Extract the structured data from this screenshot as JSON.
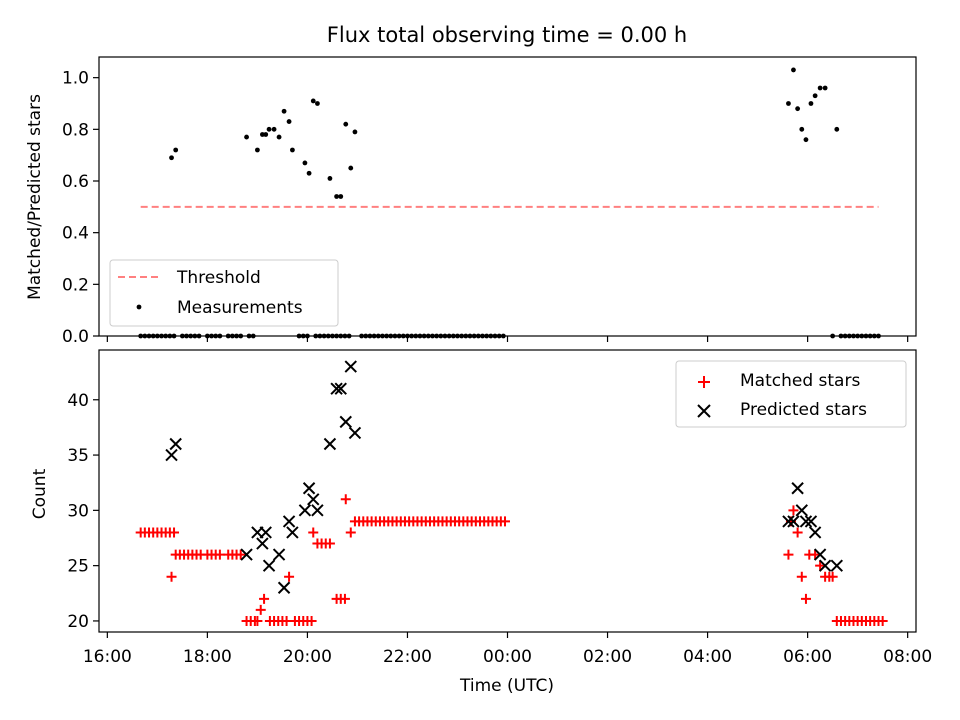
{
  "chart_data": [
    {
      "type": "scatter",
      "title": "Flux total observing time = 0.00 h",
      "ylabel": "Matched/Predicted stars",
      "xlabel": "",
      "ylim": [
        0.0,
        1.08
      ],
      "yticks": [
        "0.0",
        "0.2",
        "0.4",
        "0.6",
        "0.8",
        "1.0"
      ],
      "grid": false,
      "legend_position": "lower-left",
      "threshold": {
        "name": "Threshold",
        "y": 0.5,
        "x_start": "16:40",
        "x_end": "07:25",
        "color": "#ff8080"
      },
      "series": [
        {
          "name": "Measurements",
          "color": "#000000",
          "points": [
            [
              "16:40",
              0
            ],
            [
              "16:45",
              0
            ],
            [
              "16:50",
              0
            ],
            [
              "16:55",
              0
            ],
            [
              "17:00",
              0
            ],
            [
              "17:05",
              0
            ],
            [
              "17:10",
              0
            ],
            [
              "17:15",
              0
            ],
            [
              "17:20",
              0
            ],
            [
              "17:17",
              0.69
            ],
            [
              "17:22",
              0.72
            ],
            [
              "17:30",
              0
            ],
            [
              "17:35",
              0
            ],
            [
              "17:40",
              0
            ],
            [
              "17:45",
              0
            ],
            [
              "17:50",
              0
            ],
            [
              "18:00",
              0
            ],
            [
              "18:05",
              0
            ],
            [
              "18:10",
              0
            ],
            [
              "18:15",
              0
            ],
            [
              "18:25",
              0
            ],
            [
              "18:30",
              0
            ],
            [
              "18:35",
              0
            ],
            [
              "18:40",
              0
            ],
            [
              "18:50",
              0
            ],
            [
              "18:55",
              0
            ],
            [
              "18:47",
              0.77
            ],
            [
              "19:00",
              0.72
            ],
            [
              "19:06",
              0.78
            ],
            [
              "19:10",
              0.78
            ],
            [
              "19:14",
              0.8
            ],
            [
              "19:20",
              0.8
            ],
            [
              "19:26",
              0.77
            ],
            [
              "19:32",
              0.87
            ],
            [
              "19:38",
              0.83
            ],
            [
              "19:42",
              0.72
            ],
            [
              "19:57",
              0.67
            ],
            [
              "20:02",
              0.63
            ],
            [
              "20:07",
              0.91
            ],
            [
              "20:12",
              0.9
            ],
            [
              "20:27",
              0.61
            ],
            [
              "20:35",
              0.54
            ],
            [
              "20:40",
              0.54
            ],
            [
              "20:46",
              0.82
            ],
            [
              "20:52",
              0.65
            ],
            [
              "20:57",
              0.79
            ],
            [
              "19:50",
              0
            ],
            [
              "19:55",
              0
            ],
            [
              "20:00",
              0
            ],
            [
              "20:10",
              0
            ],
            [
              "20:15",
              0
            ],
            [
              "20:20",
              0
            ],
            [
              "20:25",
              0
            ],
            [
              "20:30",
              0
            ],
            [
              "20:35",
              0
            ],
            [
              "20:40",
              0
            ],
            [
              "20:45",
              0
            ],
            [
              "20:50",
              0
            ],
            [
              "21:05",
              0
            ],
            [
              "21:10",
              0
            ],
            [
              "21:15",
              0
            ],
            [
              "21:20",
              0
            ],
            [
              "21:25",
              0
            ],
            [
              "21:30",
              0
            ],
            [
              "21:35",
              0
            ],
            [
              "21:40",
              0
            ],
            [
              "21:45",
              0
            ],
            [
              "21:50",
              0
            ],
            [
              "21:55",
              0
            ],
            [
              "22:00",
              0
            ],
            [
              "22:05",
              0
            ],
            [
              "22:10",
              0
            ],
            [
              "22:15",
              0
            ],
            [
              "22:20",
              0
            ],
            [
              "22:25",
              0
            ],
            [
              "22:30",
              0
            ],
            [
              "22:35",
              0
            ],
            [
              "22:40",
              0
            ],
            [
              "22:45",
              0
            ],
            [
              "22:50",
              0
            ],
            [
              "22:55",
              0
            ],
            [
              "23:00",
              0
            ],
            [
              "23:05",
              0
            ],
            [
              "23:10",
              0
            ],
            [
              "23:15",
              0
            ],
            [
              "23:20",
              0
            ],
            [
              "23:25",
              0
            ],
            [
              "23:30",
              0
            ],
            [
              "23:35",
              0
            ],
            [
              "23:40",
              0
            ],
            [
              "23:45",
              0
            ],
            [
              "23:50",
              0
            ],
            [
              "23:55",
              0
            ],
            [
              "05:37",
              0.9
            ],
            [
              "05:43",
              1.03
            ],
            [
              "05:48",
              0.88
            ],
            [
              "05:53",
              0.8
            ],
            [
              "05:58",
              0.76
            ],
            [
              "06:04",
              0.9
            ],
            [
              "06:09",
              0.93
            ],
            [
              "06:15",
              0.96
            ],
            [
              "06:21",
              0.96
            ],
            [
              "06:35",
              0.8
            ],
            [
              "06:30",
              0
            ],
            [
              "06:40",
              0
            ],
            [
              "06:45",
              0
            ],
            [
              "06:50",
              0
            ],
            [
              "06:55",
              0
            ],
            [
              "07:00",
              0
            ],
            [
              "07:05",
              0
            ],
            [
              "07:10",
              0
            ],
            [
              "07:15",
              0
            ],
            [
              "07:20",
              0
            ],
            [
              "07:25",
              0
            ]
          ]
        }
      ]
    },
    {
      "type": "scatter",
      "ylabel": "Count",
      "xlabel": "Time (UTC)",
      "ylim": [
        19,
        44.5
      ],
      "yticks": [
        "20",
        "25",
        "30",
        "35",
        "40"
      ],
      "xlim": [
        "15:50",
        "08:10"
      ],
      "xticks": [
        "16:00",
        "18:00",
        "20:00",
        "22:00",
        "00:00",
        "02:00",
        "04:00",
        "06:00",
        "08:00"
      ],
      "grid": false,
      "legend_position": "upper-right",
      "series": [
        {
          "name": "Matched stars",
          "marker": "plus",
          "color": "#ff0000",
          "points": [
            [
              "16:40",
              28
            ],
            [
              "16:45",
              28
            ],
            [
              "16:50",
              28
            ],
            [
              "16:55",
              28
            ],
            [
              "17:00",
              28
            ],
            [
              "17:05",
              28
            ],
            [
              "17:10",
              28
            ],
            [
              "17:15",
              28
            ],
            [
              "17:20",
              28
            ],
            [
              "17:17",
              24
            ],
            [
              "17:22",
              26
            ],
            [
              "17:27",
              26
            ],
            [
              "17:32",
              26
            ],
            [
              "17:37",
              26
            ],
            [
              "17:42",
              26
            ],
            [
              "17:47",
              26
            ],
            [
              "17:52",
              26
            ],
            [
              "18:00",
              26
            ],
            [
              "18:05",
              26
            ],
            [
              "18:10",
              26
            ],
            [
              "18:15",
              26
            ],
            [
              "18:25",
              26
            ],
            [
              "18:30",
              26
            ],
            [
              "18:35",
              26
            ],
            [
              "18:40",
              26
            ],
            [
              "18:47",
              20
            ],
            [
              "18:52",
              20
            ],
            [
              "18:57",
              20
            ],
            [
              "19:00",
              20
            ],
            [
              "19:04",
              21
            ],
            [
              "19:08",
              22
            ],
            [
              "19:15",
              20
            ],
            [
              "19:20",
              20
            ],
            [
              "19:25",
              20
            ],
            [
              "19:30",
              20
            ],
            [
              "19:35",
              20
            ],
            [
              "19:38",
              24
            ],
            [
              "19:45",
              20
            ],
            [
              "19:50",
              20
            ],
            [
              "19:55",
              20
            ],
            [
              "20:00",
              20
            ],
            [
              "20:05",
              20
            ],
            [
              "20:07",
              28
            ],
            [
              "20:12",
              27
            ],
            [
              "20:17",
              27
            ],
            [
              "20:22",
              27
            ],
            [
              "20:27",
              27
            ],
            [
              "20:35",
              22
            ],
            [
              "20:40",
              22
            ],
            [
              "20:45",
              22
            ],
            [
              "20:46",
              31
            ],
            [
              "20:52",
              28
            ],
            [
              "20:57",
              29
            ],
            [
              "21:02",
              29
            ],
            [
              "21:07",
              29
            ],
            [
              "21:12",
              29
            ],
            [
              "21:17",
              29
            ],
            [
              "21:22",
              29
            ],
            [
              "21:27",
              29
            ],
            [
              "21:32",
              29
            ],
            [
              "21:37",
              29
            ],
            [
              "21:42",
              29
            ],
            [
              "21:47",
              29
            ],
            [
              "21:52",
              29
            ],
            [
              "21:57",
              29
            ],
            [
              "22:02",
              29
            ],
            [
              "22:07",
              29
            ],
            [
              "22:12",
              29
            ],
            [
              "22:17",
              29
            ],
            [
              "22:22",
              29
            ],
            [
              "22:27",
              29
            ],
            [
              "22:32",
              29
            ],
            [
              "22:37",
              29
            ],
            [
              "22:42",
              29
            ],
            [
              "22:47",
              29
            ],
            [
              "22:52",
              29
            ],
            [
              "22:57",
              29
            ],
            [
              "23:02",
              29
            ],
            [
              "23:07",
              29
            ],
            [
              "23:12",
              29
            ],
            [
              "23:17",
              29
            ],
            [
              "23:22",
              29
            ],
            [
              "23:27",
              29
            ],
            [
              "23:32",
              29
            ],
            [
              "23:37",
              29
            ],
            [
              "23:42",
              29
            ],
            [
              "23:47",
              29
            ],
            [
              "23:52",
              29
            ],
            [
              "23:57",
              29
            ],
            [
              "05:37",
              26
            ],
            [
              "05:40",
              29
            ],
            [
              "05:43",
              30
            ],
            [
              "05:48",
              28
            ],
            [
              "05:53",
              24
            ],
            [
              "05:58",
              22
            ],
            [
              "06:02",
              26
            ],
            [
              "06:09",
              26
            ],
            [
              "06:15",
              25
            ],
            [
              "06:21",
              24
            ],
            [
              "06:26",
              24
            ],
            [
              "06:30",
              24
            ],
            [
              "06:35",
              20
            ],
            [
              "06:40",
              20
            ],
            [
              "06:45",
              20
            ],
            [
              "06:50",
              20
            ],
            [
              "06:55",
              20
            ],
            [
              "07:00",
              20
            ],
            [
              "07:05",
              20
            ],
            [
              "07:10",
              20
            ],
            [
              "07:15",
              20
            ],
            [
              "07:20",
              20
            ],
            [
              "07:25",
              20
            ],
            [
              "07:30",
              20
            ]
          ]
        },
        {
          "name": "Predicted stars",
          "marker": "x",
          "color": "#000000",
          "points": [
            [
              "17:17",
              35
            ],
            [
              "17:22",
              36
            ],
            [
              "18:47",
              26
            ],
            [
              "19:00",
              28
            ],
            [
              "19:06",
              27
            ],
            [
              "19:10",
              28
            ],
            [
              "19:14",
              25
            ],
            [
              "19:26",
              26
            ],
            [
              "19:32",
              23
            ],
            [
              "19:38",
              29
            ],
            [
              "19:42",
              28
            ],
            [
              "19:57",
              30
            ],
            [
              "20:02",
              32
            ],
            [
              "20:07",
              31
            ],
            [
              "20:12",
              30
            ],
            [
              "20:27",
              36
            ],
            [
              "20:35",
              41
            ],
            [
              "20:40",
              41
            ],
            [
              "20:46",
              38
            ],
            [
              "20:52",
              43
            ],
            [
              "20:57",
              37
            ],
            [
              "05:37",
              29
            ],
            [
              "05:43",
              29
            ],
            [
              "05:48",
              32
            ],
            [
              "05:53",
              30
            ],
            [
              "05:58",
              29
            ],
            [
              "06:04",
              29
            ],
            [
              "06:09",
              28
            ],
            [
              "06:15",
              26
            ],
            [
              "06:21",
              25
            ],
            [
              "06:35",
              25
            ]
          ]
        }
      ]
    }
  ]
}
